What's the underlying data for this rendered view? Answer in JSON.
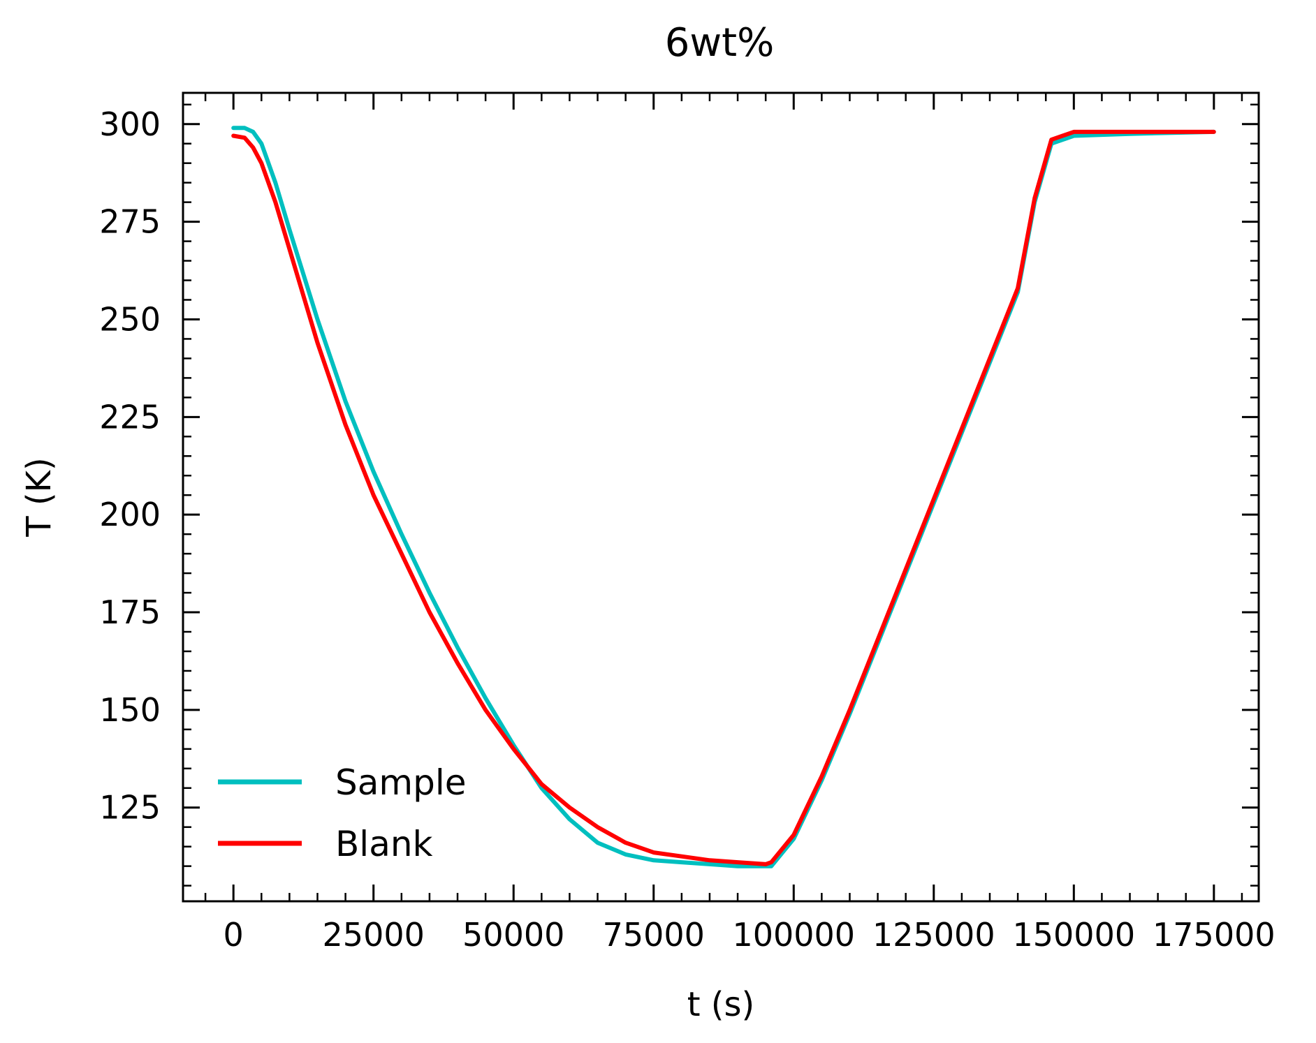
{
  "chart_data": {
    "type": "line",
    "title": "6wt%",
    "xlabel": "t (s)",
    "ylabel": "T (K)",
    "xlim": [
      -9000,
      183000
    ],
    "ylim": [
      101,
      308
    ],
    "xticks": [
      0,
      25000,
      50000,
      75000,
      100000,
      125000,
      150000,
      175000
    ],
    "xtick_labels": [
      "0",
      "25000",
      "50000",
      "75000",
      "100000",
      "125000",
      "150000",
      "175000"
    ],
    "yticks": [
      125,
      150,
      175,
      200,
      225,
      250,
      275,
      300
    ],
    "ytick_labels": [
      "125",
      "150",
      "175",
      "200",
      "225",
      "250",
      "275",
      "300"
    ],
    "grid": false,
    "legend_position": "bottom-left",
    "series": [
      {
        "name": "Sample",
        "color": "#00bfbf",
        "x": [
          0,
          2000,
          3500,
          5000,
          7500,
          10000,
          15000,
          20000,
          25000,
          30000,
          35000,
          40000,
          45000,
          50000,
          55000,
          60000,
          65000,
          70000,
          75000,
          80000,
          85000,
          90000,
          95000,
          96000,
          100000,
          105000,
          110000,
          115000,
          120000,
          125000,
          130000,
          135000,
          140000,
          143000,
          146000,
          150000,
          160000,
          175000
        ],
        "y": [
          299,
          299,
          298,
          295,
          285,
          273,
          250,
          229,
          211,
          195,
          180,
          166,
          153,
          141,
          130,
          122,
          116,
          113,
          111.5,
          111,
          110.5,
          110,
          110,
          110,
          117,
          132,
          149,
          167,
          185,
          203,
          221,
          239,
          257,
          280,
          295,
          297,
          297.5,
          298
        ]
      },
      {
        "name": "Blank",
        "color": "#ff0000",
        "x": [
          0,
          2000,
          3500,
          5000,
          7500,
          10000,
          15000,
          20000,
          25000,
          30000,
          35000,
          40000,
          45000,
          50000,
          55000,
          60000,
          65000,
          70000,
          75000,
          80000,
          85000,
          90000,
          95000,
          96000,
          100000,
          105000,
          110000,
          115000,
          120000,
          125000,
          130000,
          135000,
          140000,
          143000,
          146000,
          150000,
          160000,
          175000
        ],
        "y": [
          297,
          296.5,
          294,
          290,
          280,
          268,
          244,
          223,
          205,
          190,
          175,
          162,
          150,
          140,
          131,
          125,
          120,
          116,
          113.5,
          112.5,
          111.5,
          111,
          110.5,
          111,
          118,
          133,
          150,
          168,
          186,
          204,
          222,
          240,
          258,
          281,
          296,
          298,
          298,
          298
        ]
      }
    ]
  }
}
